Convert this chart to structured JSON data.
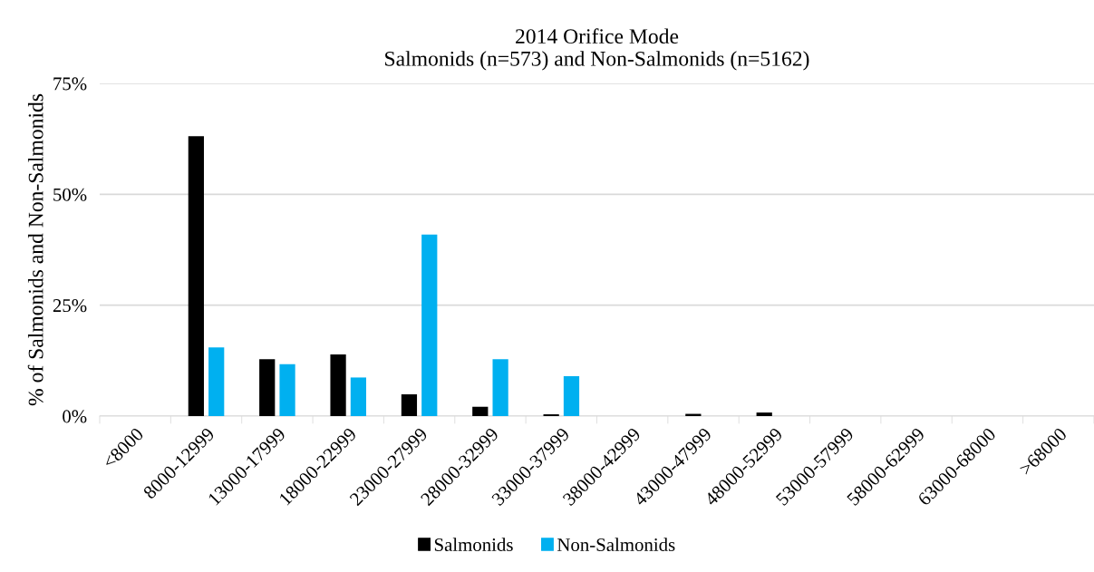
{
  "chart_data": {
    "type": "bar",
    "title": "2014 Orifice Mode\nSalmonids (n=573) and Non-Salmonids (n=5162)",
    "ylabel": "% of Salmonids and Non-Salmonids",
    "categories": [
      "<8000",
      "8000-12999",
      "13000-17999",
      "18000-22999",
      "23000-27999",
      "28000-32999",
      "33000-37999",
      "38000-42999",
      "43000-47999",
      "48000-52999",
      "53000-57999",
      "58000-62999",
      "63000-68000",
      ">68000"
    ],
    "series": [
      {
        "name": "Salmonids",
        "color": "#000000",
        "values": [
          0,
          63.1,
          12.8,
          13.9,
          4.9,
          2.1,
          0.4,
          0,
          0.5,
          0.8,
          0,
          0,
          0,
          0
        ]
      },
      {
        "name": "Non-Salmonids",
        "color": "#00b0f0",
        "values": [
          0,
          15.5,
          11.7,
          8.7,
          40.9,
          12.8,
          9.0,
          0,
          0,
          0,
          0,
          0,
          0,
          0
        ]
      }
    ],
    "ylim": [
      0,
      75
    ],
    "yticks": [
      {
        "value": 0,
        "label": "0%"
      },
      {
        "value": 25,
        "label": "25%"
      },
      {
        "value": 50,
        "label": "50%"
      },
      {
        "value": 75,
        "label": "75%"
      }
    ],
    "grid": "y",
    "legend": "bottom"
  }
}
